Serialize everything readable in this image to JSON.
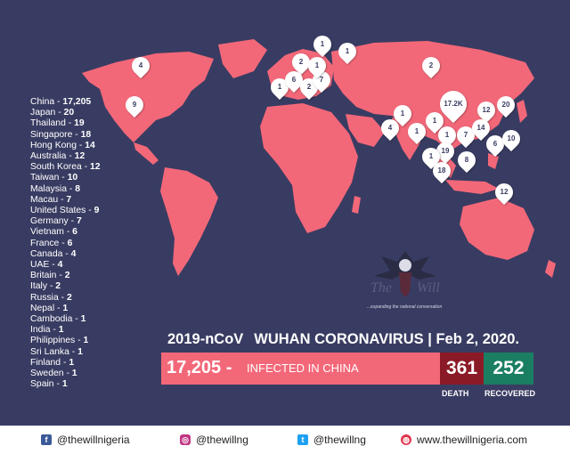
{
  "countries": [
    {
      "name": "China",
      "count": "17,205"
    },
    {
      "name": "Japan",
      "count": "20"
    },
    {
      "name": "Thailand",
      "count": "19"
    },
    {
      "name": "Singapore",
      "count": "18"
    },
    {
      "name": "Hong Kong",
      "count": "14"
    },
    {
      "name": "Australia",
      "count": "12"
    },
    {
      "name": "South Korea",
      "count": "12"
    },
    {
      "name": "Taiwan",
      "count": "10"
    },
    {
      "name": "Malaysia",
      "count": "8"
    },
    {
      "name": "Macau",
      "count": "7"
    },
    {
      "name": "United States",
      "count": "9"
    },
    {
      "name": "Germany",
      "count": "7"
    },
    {
      "name": "Vietnam",
      "count": "6"
    },
    {
      "name": "France",
      "count": "6"
    },
    {
      "name": "Canada",
      "count": "4"
    },
    {
      "name": "UAE",
      "count": "4"
    },
    {
      "name": "Britain",
      "count": "2"
    },
    {
      "name": "Italy",
      "count": "2"
    },
    {
      "name": "Russia",
      "count": "2"
    },
    {
      "name": "Nepal",
      "count": "1"
    },
    {
      "name": "Cambodia",
      "count": "1"
    },
    {
      "name": "India",
      "count": "1"
    },
    {
      "name": "Philippines",
      "count": "1"
    },
    {
      "name": "Sri Lanka",
      "count": "1"
    },
    {
      "name": "Finland",
      "count": "1"
    },
    {
      "name": "Sweden",
      "count": "1"
    },
    {
      "name": "Spain",
      "count": "1"
    }
  ],
  "map_pins": [
    "4",
    "9",
    "1",
    "1",
    "2",
    "1",
    "6",
    "2",
    "7",
    "1",
    "2",
    "17.2K",
    "1",
    "1",
    "4",
    "1",
    "1",
    "7",
    "12",
    "20",
    "14",
    "19",
    "6",
    "10",
    "1",
    "8",
    "18",
    "12"
  ],
  "headline": {
    "title": "2019-nCoV",
    "subtitle": "WUHAN CORONAVIRUS",
    "separator": "|",
    "date": "Feb 2, 2020."
  },
  "infected": {
    "number": "17,205 -",
    "label": "INFECTED IN CHINA"
  },
  "death": {
    "value": "361",
    "label": "DEATH"
  },
  "recovered": {
    "value": "252",
    "label": "RECOVERED"
  },
  "logo": {
    "tagline": "...expanding the national conversation",
    "wordmark": "The Will"
  },
  "footer": {
    "facebook": "@thewillnigeria",
    "instagram": "@thewillng",
    "twitter": "@thewillng",
    "website": "www.thewillnigeria.com"
  },
  "colors": {
    "background": "#393c62",
    "map": "#f36879",
    "death": "#8b1a27",
    "recovered": "#1a7e63"
  }
}
